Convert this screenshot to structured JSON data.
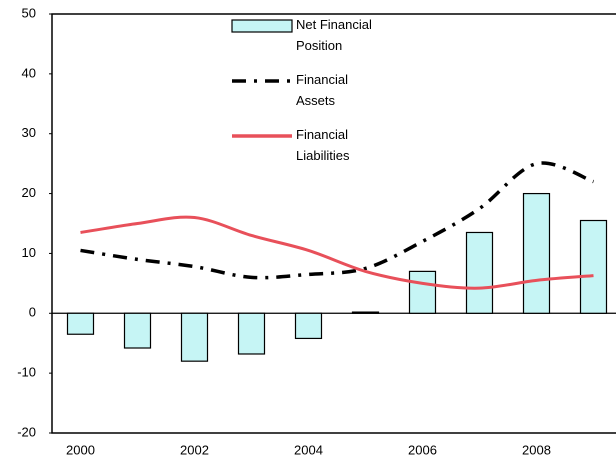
{
  "chart_data": {
    "type": "bar-line",
    "categories": [
      "2000",
      null,
      "2002",
      null,
      "2004",
      null,
      "2006",
      null,
      "2008",
      null
    ],
    "series": [
      {
        "name": "Net Financial Position",
        "type": "bar",
        "color": "#c6f5f5",
        "values": [
          -3.5,
          -5.8,
          -8,
          -6.8,
          -4.2,
          0.2,
          7,
          13.5,
          20,
          15.5
        ]
      },
      {
        "name": "Financial Assets",
        "type": "line",
        "style": "dash-dot",
        "color": "#000000",
        "values": [
          10.5,
          9,
          7.8,
          6,
          6.5,
          7.5,
          12,
          17.5,
          25,
          22
        ]
      },
      {
        "name": "Financial Liabilities",
        "type": "line",
        "style": "solid",
        "color": "#e8505a",
        "values": [
          13.5,
          15,
          16,
          13,
          10.5,
          7,
          5,
          4.2,
          5.5,
          6.3
        ]
      }
    ],
    "ylim": [
      -20,
      50
    ],
    "yticks": [
      -20,
      -10,
      0,
      10,
      20,
      30,
      40,
      50
    ],
    "grid": false,
    "legend": "top"
  }
}
